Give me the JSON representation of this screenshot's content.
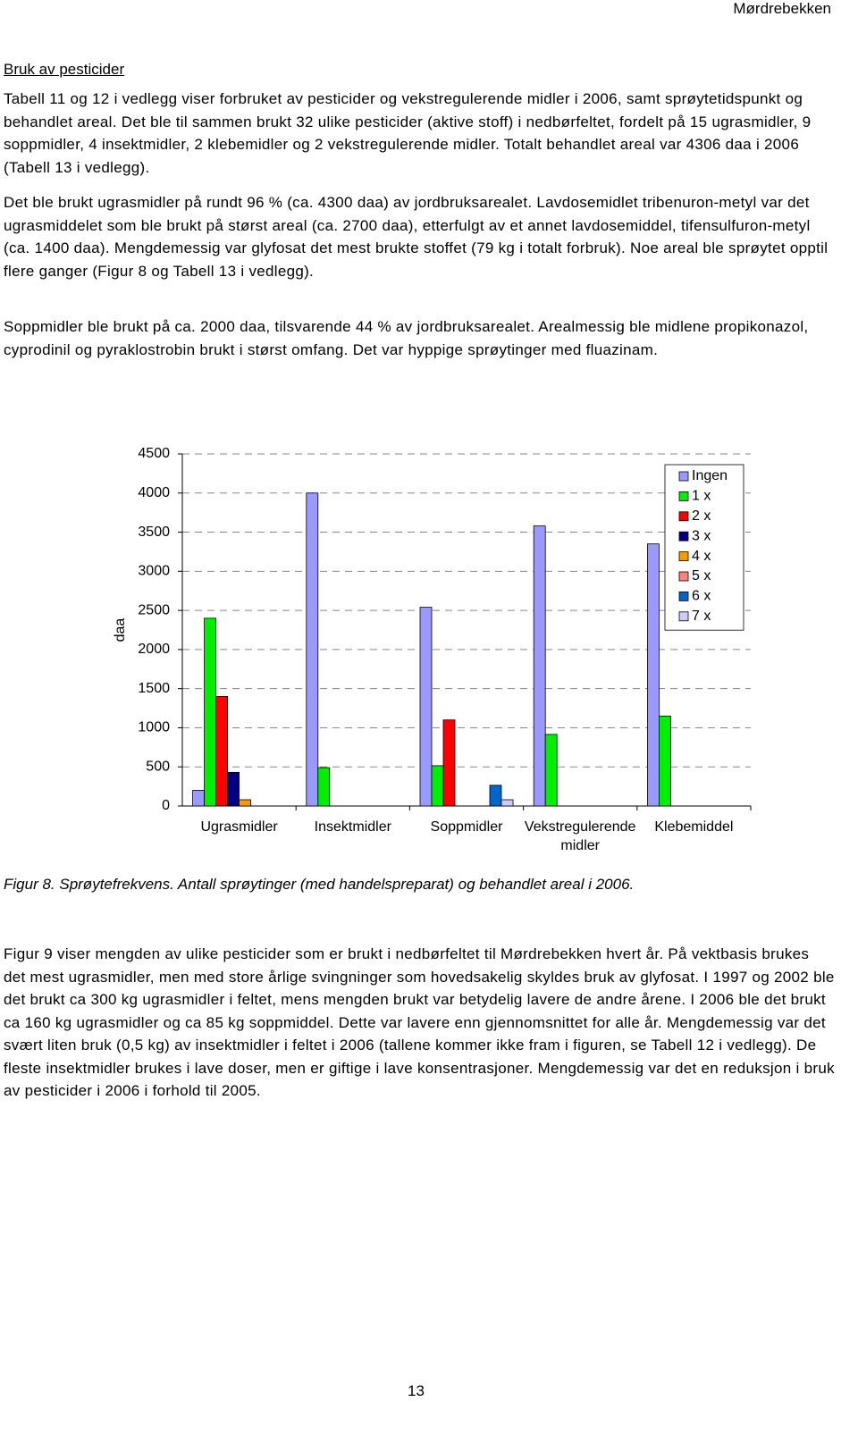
{
  "header": {
    "running_title": "Mørdrebekken"
  },
  "section": {
    "heading": "Bruk av pesticider"
  },
  "paragraphs": [
    "Tabell 11 og 12 i vedlegg viser forbruket av pesticider og vekstregulerende midler i 2006, samt sprøytetidspunkt og behandlet areal. Det ble til sammen brukt 32 ulike pesticider (aktive stoff) i nedbørfeltet, fordelt på 15 ugrasmidler, 9 soppmidler, 4 insektmidler, 2 klebemidler og 2 vekstregulerende midler. Totalt behandlet areal var 4306 daa i 2006 (Tabell 13 i vedlegg).",
    "Det ble brukt ugrasmidler på rundt 96 % (ca. 4300 daa) av jordbruksarealet. Lavdosemidlet tribenuron-metyl var det ugrasmiddelet som ble brukt på størst areal (ca. 2700 daa), etterfulgt av et annet lavdosemiddel, tifensulfuron-metyl (ca. 1400 daa). Mengdemessig var glyfosat det mest brukte stoffet (79 kg i totalt forbruk). Noe areal ble sprøytet opptil flere ganger (Figur 8 og Tabell 13 i vedlegg).",
    "Soppmidler ble brukt på ca. 2000 daa, tilsvarende 44 % av jordbruksarealet. Arealmessig ble midlene propikonazol, cyprodinil og pyraklostrobin brukt i størst omfang. Det var hyppige sprøytinger med fluazinam."
  ],
  "chart_data": {
    "type": "bar",
    "y_label": "daa",
    "categories": [
      "Ugrasmidler",
      "Insektmidler",
      "Soppmidler",
      "Vekstregulerende midler",
      "Klebemiddel"
    ],
    "series": [
      {
        "name": "Ingen",
        "color": "#9999ff",
        "values": [
          200,
          4000,
          2540,
          3580,
          3350
        ]
      },
      {
        "name": "1 x",
        "color": "#00ee00",
        "values": [
          2400,
          490,
          515,
          915,
          1150
        ]
      },
      {
        "name": "2 x",
        "color": "#ff0000",
        "values": [
          1400,
          0,
          1100,
          0,
          0
        ]
      },
      {
        "name": "3 x",
        "color": "#000080",
        "values": [
          430,
          0,
          0,
          0,
          0
        ]
      },
      {
        "name": "4 x",
        "color": "#ff9900",
        "values": [
          80,
          0,
          0,
          0,
          0
        ]
      },
      {
        "name": "5 x",
        "color": "#ff8080",
        "values": [
          0,
          0,
          0,
          0,
          0
        ]
      },
      {
        "name": "6 x",
        "color": "#0066cc",
        "values": [
          0,
          0,
          265,
          0,
          0
        ]
      },
      {
        "name": "7 x",
        "color": "#ccccff",
        "values": [
          0,
          0,
          80,
          0,
          0
        ]
      }
    ],
    "ylim": [
      0,
      4500
    ],
    "yticks": [
      0,
      500,
      1000,
      1500,
      2000,
      2500,
      3000,
      3500,
      4000,
      4500
    ],
    "grid": true,
    "legend": "top-right"
  },
  "figure": {
    "caption": "Figur 8. Sprøytefrekvens. Antall sprøytinger (med handelspreparat) og behandlet areal i 2006."
  },
  "paragraphs_after": [
    "Figur 9 viser mengden av ulike pesticider som er brukt i nedbørfeltet til Mørdrebekken hvert år. På vektbasis brukes det mest ugrasmidler, men med store årlige svingninger som hovedsakelig skyldes bruk av glyfosat. I 1997 og 2002 ble det brukt ca 300 kg ugrasmidler i feltet, mens mengden brukt var betydelig lavere de andre årene. I 2006 ble det brukt ca 160 kg ugrasmidler og ca 85 kg soppmiddel. Dette var lavere enn gjennomsnittet for alle år. Mengdemessig var det svært liten bruk (0,5 kg) av insektmidler i feltet i 2006 (tallene kommer ikke fram i figuren, se Tabell 12 i vedlegg). De fleste insektmidler brukes i lave doser, men er giftige i lave konsentrasjoner. Mengdemessig var det en reduksjon i bruk av pesticider i 2006 i forhold til 2005."
  ],
  "footer": {
    "page_number": "13"
  }
}
